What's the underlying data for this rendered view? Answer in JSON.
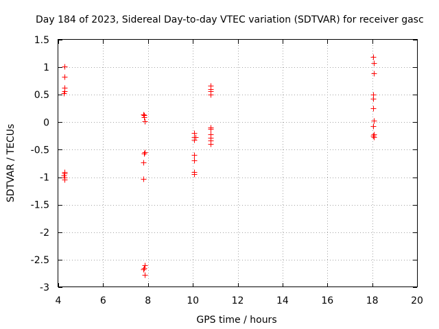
{
  "chart_data": {
    "type": "scatter",
    "title": "Day 184 of 2023, Sidereal Day-to-day VTEC variation (SDTVAR) for receiver gasc",
    "xlabel": "GPS time / hours",
    "ylabel": "SDTVAR / TECUs",
    "xlim": [
      4,
      20
    ],
    "ylim": [
      -3,
      1.5
    ],
    "xticks": [
      4,
      6,
      8,
      10,
      12,
      14,
      16,
      18,
      20
    ],
    "xtick_labels": [
      "4",
      "6",
      "8",
      "10",
      "12",
      "14",
      "16",
      "18",
      "20"
    ],
    "yticks": [
      -3,
      -2.5,
      -2,
      -1.5,
      -1,
      -0.5,
      0,
      0.5,
      1,
      1.5
    ],
    "ytick_labels": [
      "-3",
      "-2.5",
      "-2",
      "-1.5",
      "-1",
      "-0.5",
      "0",
      "0.5",
      "1",
      "1.5"
    ],
    "grid": true,
    "marker": "+",
    "color": "#ff0000",
    "series": [
      {
        "name": "SDTVAR",
        "points": [
          {
            "x": 4.27,
            "y": 1.01
          },
          {
            "x": 4.27,
            "y": 0.83
          },
          {
            "x": 4.27,
            "y": 0.63
          },
          {
            "x": 4.27,
            "y": 0.57
          },
          {
            "x": 4.25,
            "y": 0.53
          },
          {
            "x": 4.27,
            "y": -0.9
          },
          {
            "x": 4.27,
            "y": -0.93
          },
          {
            "x": 4.25,
            "y": -0.97
          },
          {
            "x": 4.27,
            "y": -1.0
          },
          {
            "x": 4.27,
            "y": -1.04
          },
          {
            "x": 7.78,
            "y": 0.14
          },
          {
            "x": 7.82,
            "y": 0.13
          },
          {
            "x": 7.82,
            "y": 0.09
          },
          {
            "x": 7.85,
            "y": 0.02
          },
          {
            "x": 7.85,
            "y": -0.55
          },
          {
            "x": 7.82,
            "y": -0.57
          },
          {
            "x": 7.8,
            "y": -0.73
          },
          {
            "x": 7.78,
            "y": -1.03
          },
          {
            "x": 7.85,
            "y": -2.6
          },
          {
            "x": 7.82,
            "y": -2.65
          },
          {
            "x": 7.78,
            "y": -2.67
          },
          {
            "x": 7.85,
            "y": -2.78
          },
          {
            "x": 10.07,
            "y": -0.2
          },
          {
            "x": 10.05,
            "y": -0.27
          },
          {
            "x": 10.12,
            "y": -0.27
          },
          {
            "x": 10.07,
            "y": -0.32
          },
          {
            "x": 10.07,
            "y": -0.6
          },
          {
            "x": 10.07,
            "y": -0.69
          },
          {
            "x": 10.07,
            "y": -0.91
          },
          {
            "x": 10.05,
            "y": -0.94
          },
          {
            "x": 10.78,
            "y": 0.67
          },
          {
            "x": 10.8,
            "y": 0.6
          },
          {
            "x": 10.78,
            "y": 0.56
          },
          {
            "x": 10.78,
            "y": 0.5
          },
          {
            "x": 10.8,
            "y": -0.09
          },
          {
            "x": 10.78,
            "y": -0.12
          },
          {
            "x": 10.8,
            "y": -0.22
          },
          {
            "x": 10.8,
            "y": -0.28
          },
          {
            "x": 10.78,
            "y": -0.33
          },
          {
            "x": 10.78,
            "y": -0.39
          },
          {
            "x": 18.03,
            "y": 1.19
          },
          {
            "x": 18.07,
            "y": 1.07
          },
          {
            "x": 18.07,
            "y": 0.89
          },
          {
            "x": 18.05,
            "y": 0.5
          },
          {
            "x": 18.05,
            "y": 0.43
          },
          {
            "x": 18.03,
            "y": 0.25
          },
          {
            "x": 18.07,
            "y": 0.03
          },
          {
            "x": 18.05,
            "y": -0.07
          },
          {
            "x": 18.07,
            "y": -0.22
          },
          {
            "x": 18.03,
            "y": -0.25
          },
          {
            "x": 18.07,
            "y": -0.27
          }
        ]
      }
    ]
  }
}
